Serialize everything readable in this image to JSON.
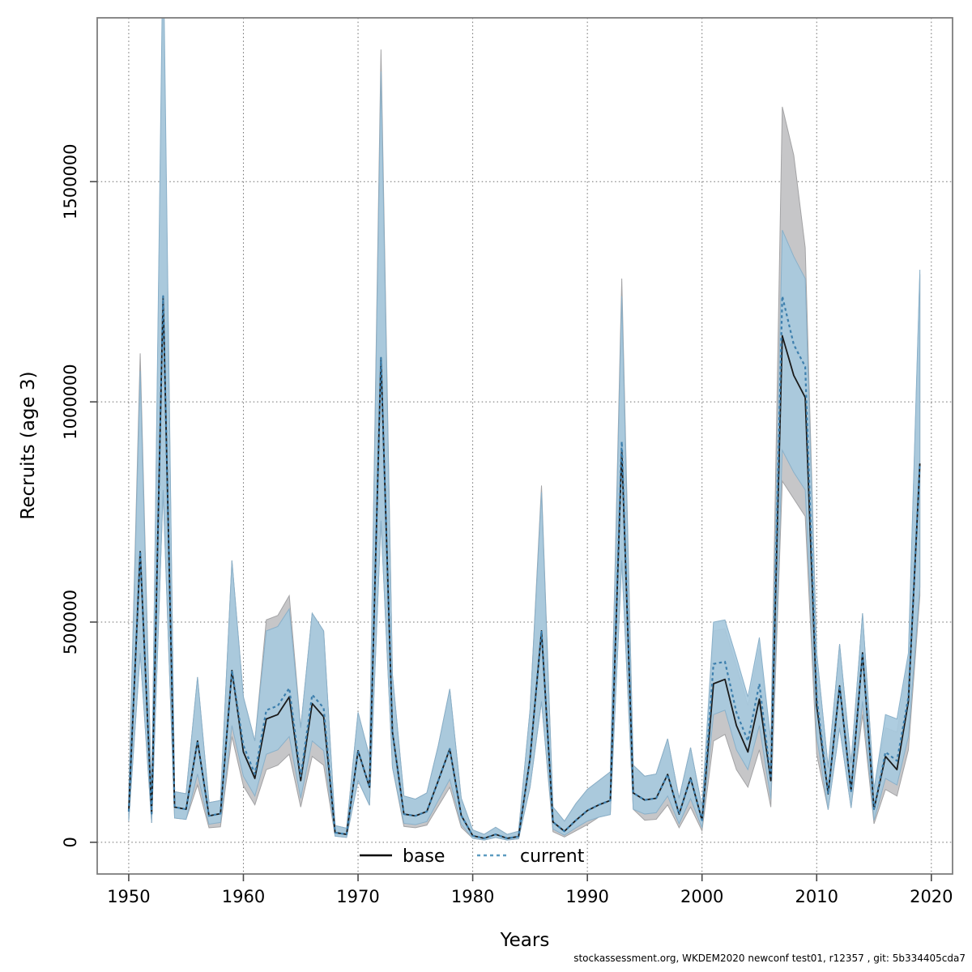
{
  "page": {
    "background": "#ffffff",
    "footer_text": "stockassessment.org, WKDEM2020  newconf  test01, r12357 , git: 5b334405cda7"
  },
  "chart_data": {
    "type": "line",
    "title": "",
    "xlabel": "Years",
    "ylabel": "Recruits (age 3)",
    "x_ticks": [
      1950,
      1960,
      1970,
      1980,
      1990,
      2000,
      2010,
      2020
    ],
    "y_ticks": [
      0,
      500000,
      1000000,
      1500000
    ],
    "y_tick_labels": [
      "0",
      "500000",
      "1000000",
      "1500000"
    ],
    "xlim": [
      1947.25,
      2021.85
    ],
    "ylim_thousands": [
      -72,
      1872
    ],
    "grid": "dotted both axes at ticks",
    "legend_position": "bottom-center-inside",
    "unit": "thousands of recruits",
    "x": [
      1950,
      1951,
      1952,
      1953,
      1954,
      1955,
      1956,
      1957,
      1958,
      1959,
      1960,
      1961,
      1962,
      1963,
      1964,
      1965,
      1966,
      1967,
      1968,
      1969,
      1970,
      1971,
      1972,
      1973,
      1974,
      1975,
      1976,
      1977,
      1978,
      1979,
      1980,
      1981,
      1982,
      1983,
      1984,
      1985,
      1986,
      1987,
      1988,
      1989,
      1990,
      1991,
      1992,
      1993,
      1994,
      1995,
      1996,
      1997,
      1998,
      1999,
      2000,
      2001,
      2002,
      2003,
      2004,
      2005,
      2006,
      2007,
      2008,
      2009,
      2010,
      2011,
      2012,
      2013,
      2014,
      2015,
      2016,
      2017,
      2018,
      2019
    ],
    "series": [
      {
        "name": "base",
        "legend_label": "base",
        "line_style": "solid",
        "line_color": "#1a1a1a",
        "band_fill": "#c6c6c8",
        "band_edge": "#a3a3a5",
        "median": [
          70,
          660,
          65,
          1240,
          80,
          75,
          230,
          60,
          65,
          390,
          205,
          145,
          280,
          290,
          330,
          140,
          315,
          285,
          22,
          18,
          208,
          125,
          1100,
          250,
          64,
          60,
          70,
          140,
          212,
          61,
          15,
          9,
          18,
          9,
          13,
          190,
          480,
          46,
          25,
          50,
          72,
          85,
          95,
          890,
          112,
          96,
          100,
          154,
          64,
          146,
          50,
          360,
          370,
          265,
          205,
          325,
          140,
          1150,
          1060,
          1010,
          310,
          110,
          355,
          116,
          430,
          75,
          195,
          165,
          320,
          860
        ],
        "ci_low": [
          48,
          430,
          44,
          800,
          55,
          52,
          130,
          33,
          35,
          240,
          128,
          85,
          165,
          175,
          200,
          80,
          195,
          175,
          14,
          11,
          140,
          84,
          730,
          170,
          36,
          33,
          39,
          82,
          125,
          34,
          9,
          5,
          11,
          5,
          8,
          125,
          320,
          24,
          12,
          26,
          40,
          57,
          63,
          640,
          75,
          50,
          52,
          85,
          33,
          80,
          26,
          230,
          245,
          165,
          125,
          210,
          80,
          820,
          780,
          740,
          200,
          74,
          260,
          78,
          290,
          42,
          120,
          105,
          210,
          560
        ],
        "ci_high": [
          105,
          1110,
          95,
          2000,
          115,
          110,
          375,
          90,
          95,
          640,
          330,
          230,
          505,
          515,
          560,
          260,
          520,
          480,
          38,
          32,
          295,
          195,
          1800,
          380,
          105,
          98,
          112,
          220,
          348,
          100,
          28,
          18,
          34,
          18,
          25,
          300,
          810,
          80,
          48,
          88,
          120,
          140,
          160,
          1280,
          175,
          150,
          155,
          235,
          100,
          215,
          80,
          480,
          485,
          400,
          310,
          440,
          230,
          1670,
          1560,
          1350,
          430,
          170,
          450,
          180,
          520,
          120,
          260,
          250,
          415,
          1290
        ]
      },
      {
        "name": "current",
        "legend_label": "current",
        "line_style": "dashed",
        "line_color": "#3d7fad",
        "band_fill": "#a7c9dd",
        "band_edge": "#8ab0c9",
        "median": [
          70,
          660,
          65,
          1240,
          80,
          75,
          230,
          60,
          65,
          390,
          220,
          155,
          300,
          310,
          350,
          150,
          335,
          305,
          22,
          18,
          208,
          125,
          1100,
          250,
          64,
          60,
          70,
          140,
          212,
          61,
          15,
          9,
          18,
          9,
          13,
          190,
          480,
          46,
          25,
          50,
          72,
          85,
          95,
          910,
          112,
          96,
          100,
          154,
          64,
          146,
          50,
          405,
          410,
          295,
          230,
          360,
          145,
          1240,
          1130,
          1080,
          330,
          110,
          355,
          116,
          430,
          75,
          205,
          185,
          330,
          860
        ],
        "ci_low": [
          48,
          430,
          44,
          800,
          55,
          52,
          155,
          41,
          45,
          265,
          150,
          105,
          200,
          210,
          240,
          100,
          230,
          208,
          14,
          11,
          140,
          84,
          730,
          170,
          43,
          40,
          47,
          95,
          143,
          41,
          9,
          5,
          11,
          5,
          8,
          125,
          320,
          30,
          16,
          33,
          48,
          57,
          63,
          640,
          75,
          64,
          67,
          105,
          42,
          99,
          33,
          290,
          300,
          210,
          165,
          265,
          98,
          890,
          840,
          800,
          240,
          74,
          260,
          78,
          320,
          50,
          145,
          130,
          240,
          580
        ],
        "ci_high": [
          105,
          1070,
          95,
          2060,
          115,
          110,
          375,
          90,
          95,
          640,
          330,
          230,
          480,
          490,
          530,
          260,
          520,
          480,
          38,
          32,
          295,
          195,
          1750,
          380,
          105,
          98,
          112,
          220,
          348,
          100,
          28,
          18,
          34,
          18,
          25,
          300,
          795,
          80,
          48,
          88,
          120,
          140,
          160,
          1240,
          175,
          150,
          155,
          235,
          100,
          215,
          80,
          500,
          505,
          420,
          330,
          465,
          230,
          1390,
          1330,
          1280,
          430,
          170,
          450,
          180,
          520,
          120,
          290,
          280,
          430,
          1300
        ]
      }
    ],
    "colors": {
      "grid": "#6e6e6e",
      "frame": "#7d7d7d",
      "tick": "#4a4a4a",
      "legend_current_sample": "#5b9bc0"
    }
  },
  "legend": {
    "base_label": "base",
    "current_label": "current"
  }
}
